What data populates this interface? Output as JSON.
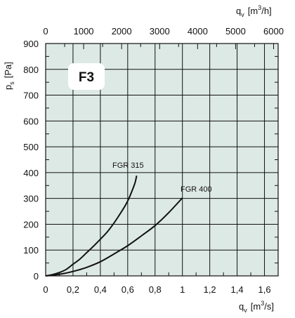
{
  "chart_data": {
    "type": "line",
    "badge": "F3",
    "x_axis_bottom": {
      "label_main": "q",
      "label_sub": "v",
      "unit_open": "[m",
      "unit_sup": "3",
      "unit_close": "/s]",
      "range": [
        0,
        1.7
      ],
      "ticks": [
        0,
        0.2,
        0.4,
        0.6,
        0.8,
        1.0,
        1.2,
        1.4,
        1.6
      ],
      "tick_labels": [
        "0",
        "0,2",
        "0,4",
        "0,6",
        "0,8",
        "1",
        "1,2",
        "1,4",
        "1,6"
      ]
    },
    "x_axis_top": {
      "label_main": "q",
      "label_sub": "v",
      "unit_open": "[m",
      "unit_sup": "3",
      "unit_close": "/h]",
      "range": [
        0,
        6120
      ],
      "ticks": [
        0,
        1000,
        2000,
        3000,
        4000,
        5000,
        6000
      ],
      "tick_labels": [
        "0",
        "1000",
        "2000",
        "3000",
        "4000",
        "5000",
        "6000"
      ]
    },
    "y_axis": {
      "label_main": "p",
      "label_sub": "s",
      "unit": "[Pa]",
      "range": [
        0,
        900
      ],
      "ticks": [
        0,
        100,
        200,
        300,
        400,
        500,
        600,
        700,
        800,
        900
      ],
      "tick_labels": [
        "0",
        "100",
        "200",
        "300",
        "400",
        "500",
        "600",
        "700",
        "800",
        "900"
      ]
    },
    "grid": true,
    "series": [
      {
        "name": "FGR 315",
        "x": [
          0,
          0.05,
          0.1,
          0.15,
          0.2,
          0.25,
          0.3,
          0.35,
          0.4,
          0.45,
          0.5,
          0.55,
          0.6,
          0.65,
          0.665
        ],
        "y": [
          0,
          5,
          13,
          25,
          45,
          65,
          90,
          115,
          142,
          170,
          205,
          245,
          290,
          355,
          388
        ]
      },
      {
        "name": "FGR 400",
        "x": [
          0,
          0.1,
          0.2,
          0.3,
          0.4,
          0.5,
          0.6,
          0.7,
          0.8,
          0.9,
          1.0
        ],
        "y": [
          0,
          6,
          17,
          33,
          55,
          85,
          117,
          155,
          195,
          245,
          302
        ]
      }
    ],
    "colors": {
      "background": "#dde9e4",
      "grid": "#111111",
      "line": "#111111"
    }
  }
}
